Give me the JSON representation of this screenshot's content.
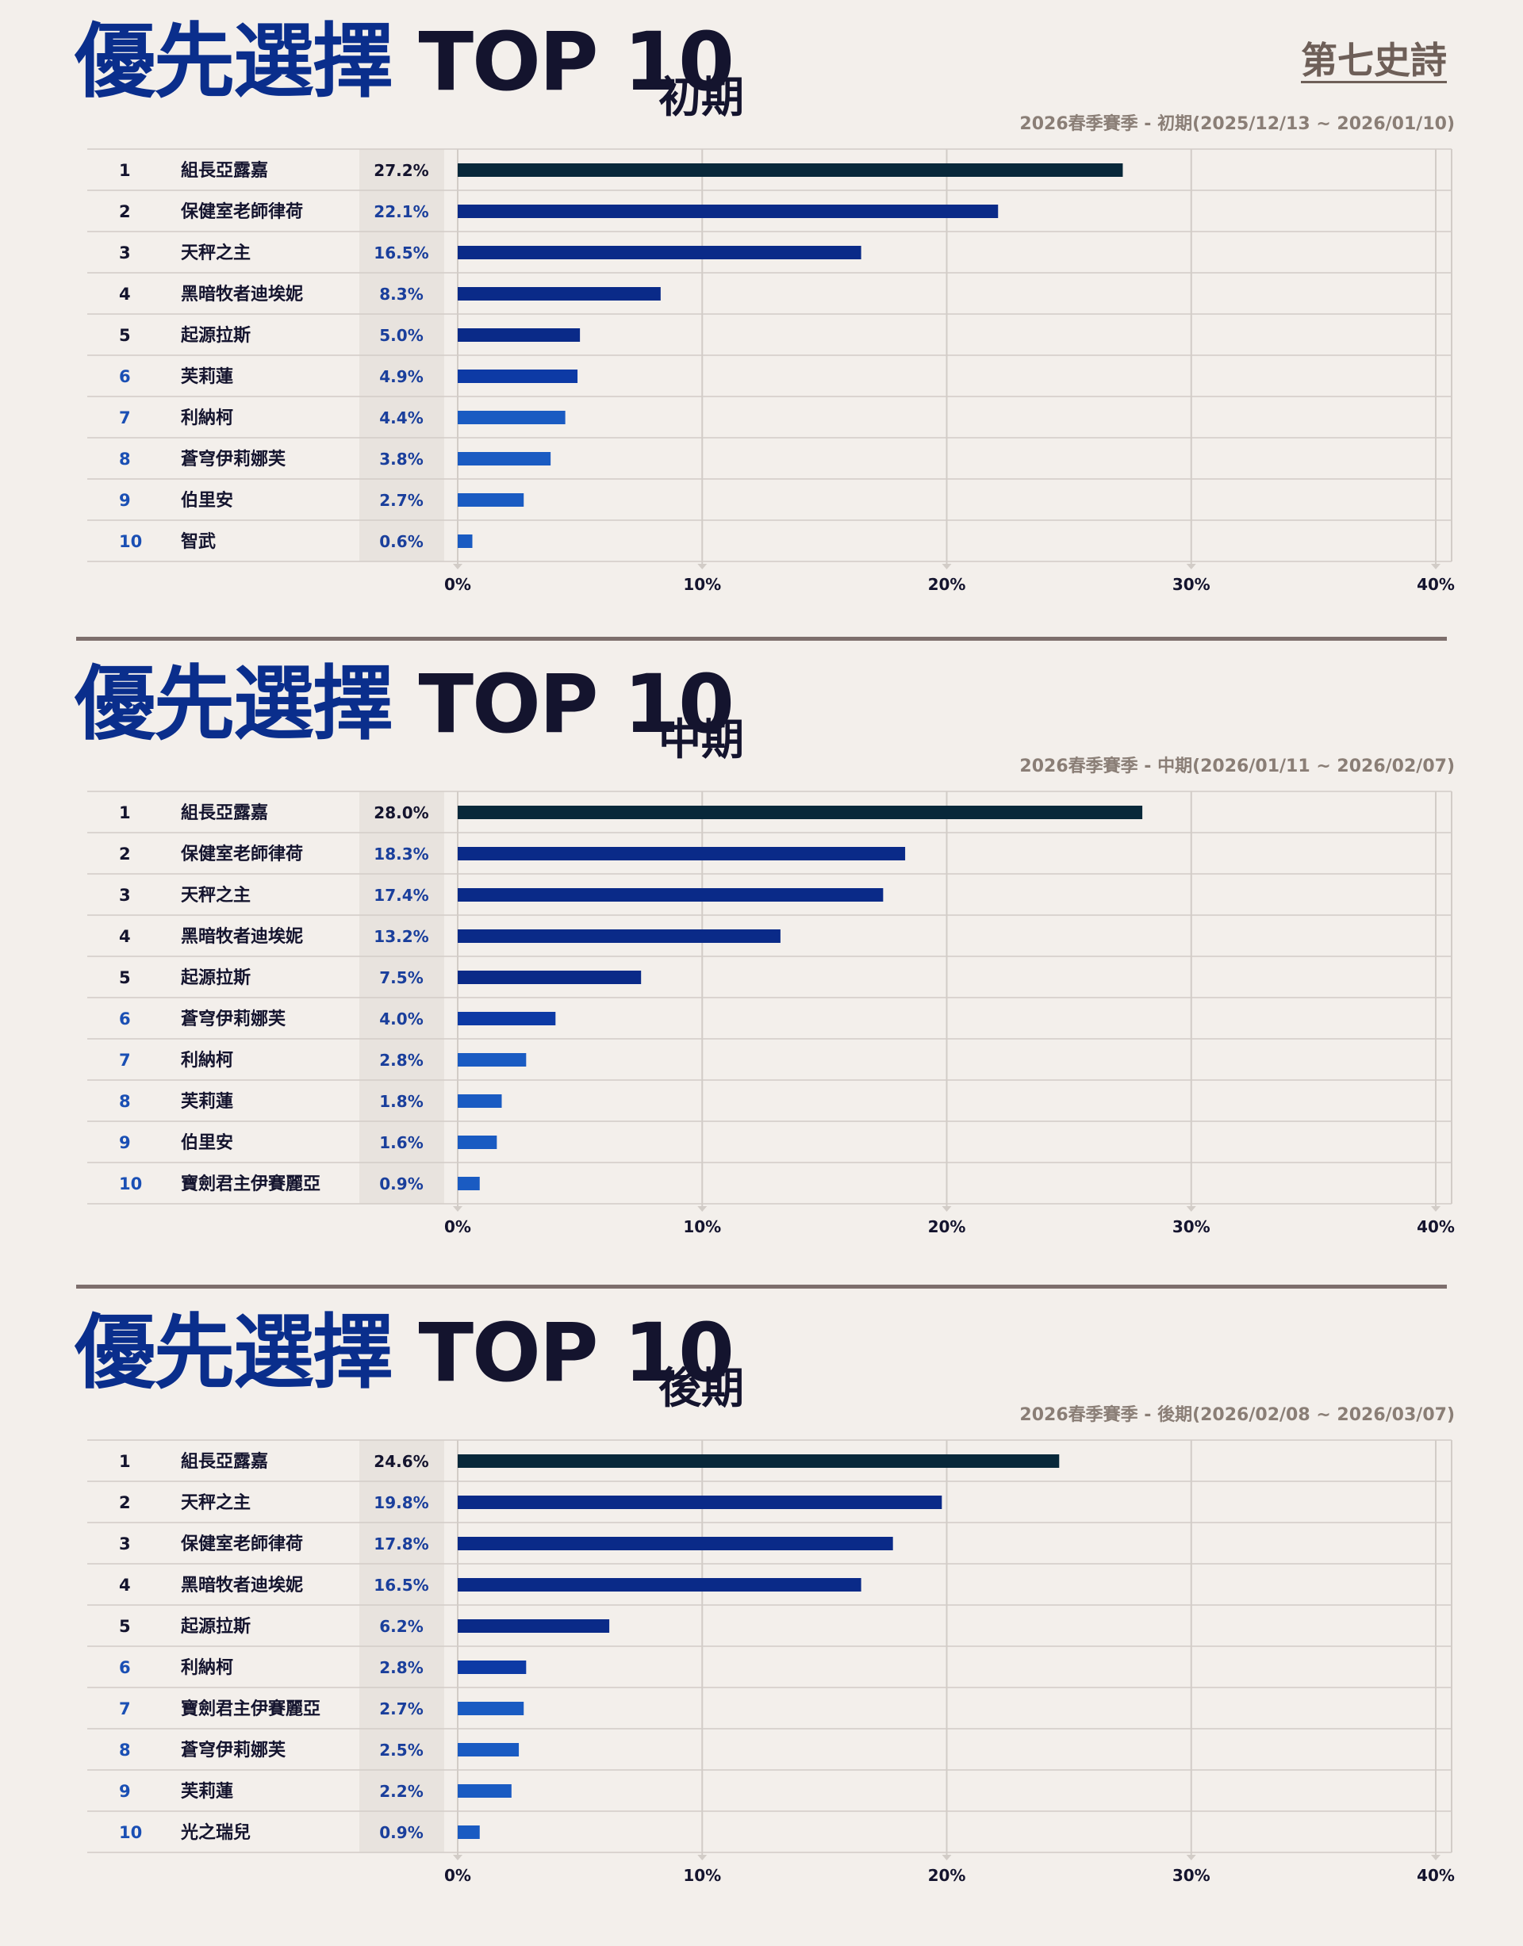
{
  "logo_text": "第七史詩",
  "axis_ticks": [
    "0%",
    "10%",
    "20%",
    "30%",
    "40%"
  ],
  "colors": {
    "rank1": "#08283a",
    "top": "#0a2a88",
    "mid": "#0d3aa5",
    "low": "#1a5bc2",
    "title_blue": "#0a2e8c",
    "title_dark": "#14142e",
    "label_band": "#e8e3de",
    "divider": "#7d6e6c"
  },
  "sections": [
    {
      "title_prefix": "優先選擇",
      "title_top": "TOP 10",
      "title_phase": "初期",
      "period": "2026春季賽季 - 初期(2025/12/13 ~ 2026/01/10)"
    },
    {
      "title_prefix": "優先選擇",
      "title_top": "TOP 10",
      "title_phase": "中期",
      "period": "2026春季賽季 - 中期(2026/01/11 ~ 2026/02/07)"
    },
    {
      "title_prefix": "優先選擇",
      "title_top": "TOP 10",
      "title_phase": "後期",
      "period": "2026春季賽季 - 後期(2026/02/08 ~ 2026/03/07)"
    }
  ],
  "chart_data": [
    {
      "type": "bar",
      "orientation": "horizontal",
      "xlim": [
        0,
        40
      ],
      "grid": true,
      "ranks": [
        "1",
        "2",
        "3",
        "4",
        "5",
        "6",
        "7",
        "8",
        "9",
        "10"
      ],
      "categories": [
        "組長亞露嘉",
        "保健室老師律荷",
        "天秤之主",
        "黑暗牧者迪埃妮",
        "起源拉斯",
        "芙莉蓮",
        "利納柯",
        "蒼穹伊莉娜芙",
        "伯里安",
        "智武"
      ],
      "values": [
        27.2,
        22.1,
        16.5,
        8.3,
        5.0,
        4.9,
        4.4,
        3.8,
        2.7,
        0.6
      ],
      "value_labels": [
        "27.2%",
        "22.1%",
        "16.5%",
        "8.3%",
        "5.0%",
        "4.9%",
        "4.4%",
        "3.8%",
        "2.7%",
        "0.6%"
      ]
    },
    {
      "type": "bar",
      "orientation": "horizontal",
      "xlim": [
        0,
        40
      ],
      "grid": true,
      "ranks": [
        "1",
        "2",
        "3",
        "4",
        "5",
        "6",
        "7",
        "8",
        "9",
        "10"
      ],
      "categories": [
        "組長亞露嘉",
        "保健室老師律荷",
        "天秤之主",
        "黑暗牧者迪埃妮",
        "起源拉斯",
        "蒼穹伊莉娜芙",
        "利納柯",
        "芙莉蓮",
        "伯里安",
        "寶劍君主伊賽麗亞"
      ],
      "values": [
        28.0,
        18.3,
        17.4,
        13.2,
        7.5,
        4.0,
        2.8,
        1.8,
        1.6,
        0.9
      ],
      "value_labels": [
        "28.0%",
        "18.3%",
        "17.4%",
        "13.2%",
        "7.5%",
        "4.0%",
        "2.8%",
        "1.8%",
        "1.6%",
        "0.9%"
      ]
    },
    {
      "type": "bar",
      "orientation": "horizontal",
      "xlim": [
        0,
        40
      ],
      "grid": true,
      "ranks": [
        "1",
        "2",
        "3",
        "4",
        "5",
        "6",
        "7",
        "8",
        "9",
        "10"
      ],
      "categories": [
        "組長亞露嘉",
        "天秤之主",
        "保健室老師律荷",
        "黑暗牧者迪埃妮",
        "起源拉斯",
        "利納柯",
        "寶劍君主伊賽麗亞",
        "蒼穹伊莉娜芙",
        "芙莉蓮",
        "光之瑞兒"
      ],
      "values": [
        24.6,
        19.8,
        17.8,
        16.5,
        6.2,
        2.8,
        2.7,
        2.5,
        2.2,
        0.9
      ],
      "value_labels": [
        "24.6%",
        "19.8%",
        "17.8%",
        "16.5%",
        "6.2%",
        "2.8%",
        "2.7%",
        "2.5%",
        "2.2%",
        "0.9%"
      ]
    }
  ]
}
